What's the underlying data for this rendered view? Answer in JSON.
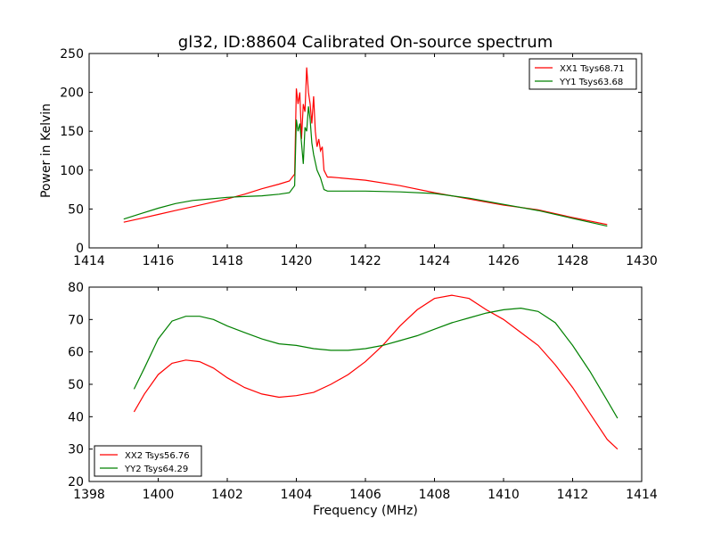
{
  "figure": {
    "title": "gl32, ID:88604 Calibrated On-source spectrum"
  },
  "chart_data": [
    {
      "type": "line",
      "ylabel": "Power in Kelvin",
      "xlabel": "",
      "xlim": [
        1414,
        1430
      ],
      "ylim": [
        0,
        250
      ],
      "xticks": [
        1414,
        1416,
        1418,
        1420,
        1422,
        1424,
        1426,
        1428,
        1430
      ],
      "yticks": [
        0,
        50,
        100,
        150,
        200,
        250
      ],
      "legend_position": "top-right",
      "grid": false,
      "series": [
        {
          "name": "XX1 Tsys68.71",
          "color": "#ff0000",
          "points": [
            [
              1415.0,
              33
            ],
            [
              1415.5,
              38
            ],
            [
              1416.0,
              43
            ],
            [
              1416.5,
              48
            ],
            [
              1417.0,
              53
            ],
            [
              1417.5,
              58
            ],
            [
              1418.0,
              63
            ],
            [
              1418.5,
              69
            ],
            [
              1419.0,
              76
            ],
            [
              1419.5,
              82
            ],
            [
              1419.8,
              86
            ],
            [
              1419.95,
              95
            ],
            [
              1420.0,
              205
            ],
            [
              1420.05,
              185
            ],
            [
              1420.1,
              200
            ],
            [
              1420.15,
              140
            ],
            [
              1420.2,
              185
            ],
            [
              1420.25,
              175
            ],
            [
              1420.3,
              232
            ],
            [
              1420.35,
              200
            ],
            [
              1420.4,
              185
            ],
            [
              1420.45,
              160
            ],
            [
              1420.5,
              195
            ],
            [
              1420.55,
              150
            ],
            [
              1420.6,
              130
            ],
            [
              1420.65,
              140
            ],
            [
              1420.7,
              125
            ],
            [
              1420.75,
              130
            ],
            [
              1420.8,
              100
            ],
            [
              1420.9,
              91
            ],
            [
              1421.0,
              91
            ],
            [
              1422.0,
              87
            ],
            [
              1423.0,
              80
            ],
            [
              1424.0,
              71
            ],
            [
              1425.0,
              63
            ],
            [
              1426.0,
              55
            ],
            [
              1427.0,
              49
            ],
            [
              1428.0,
              39
            ],
            [
              1429.0,
              30
            ]
          ]
        },
        {
          "name": "YY1 Tsys63.68",
          "color": "#008000",
          "points": [
            [
              1415.0,
              37
            ],
            [
              1415.5,
              44
            ],
            [
              1416.0,
              51
            ],
            [
              1416.5,
              57
            ],
            [
              1417.0,
              61
            ],
            [
              1417.5,
              63
            ],
            [
              1418.0,
              65
            ],
            [
              1418.5,
              66
            ],
            [
              1419.0,
              67
            ],
            [
              1419.5,
              69
            ],
            [
              1419.8,
              71
            ],
            [
              1419.95,
              80
            ],
            [
              1420.0,
              165
            ],
            [
              1420.05,
              150
            ],
            [
              1420.1,
              160
            ],
            [
              1420.15,
              135
            ],
            [
              1420.2,
              108
            ],
            [
              1420.25,
              155
            ],
            [
              1420.3,
              150
            ],
            [
              1420.35,
              182
            ],
            [
              1420.4,
              165
            ],
            [
              1420.45,
              135
            ],
            [
              1420.5,
              120
            ],
            [
              1420.55,
              110
            ],
            [
              1420.6,
              100
            ],
            [
              1420.7,
              90
            ],
            [
              1420.8,
              75
            ],
            [
              1420.9,
              73
            ],
            [
              1421.0,
              73
            ],
            [
              1422.0,
              73
            ],
            [
              1423.0,
              72
            ],
            [
              1424.0,
              70
            ],
            [
              1425.0,
              64
            ],
            [
              1426.0,
              56
            ],
            [
              1427.0,
              48
            ],
            [
              1428.0,
              38
            ],
            [
              1429.0,
              28
            ]
          ]
        }
      ]
    },
    {
      "type": "line",
      "xlabel": "Frequency (MHz)",
      "ylabel": "",
      "xlim": [
        1398,
        1414
      ],
      "ylim": [
        20,
        80
      ],
      "xticks": [
        1398,
        1400,
        1402,
        1404,
        1406,
        1408,
        1410,
        1412,
        1414
      ],
      "yticks": [
        20,
        30,
        40,
        50,
        60,
        70,
        80
      ],
      "legend_position": "bottom-left",
      "grid": false,
      "series": [
        {
          "name": "XX2 Tsys56.76",
          "color": "#ff0000",
          "points": [
            [
              1399.3,
              41.5
            ],
            [
              1399.6,
              47
            ],
            [
              1400.0,
              53
            ],
            [
              1400.4,
              56.5
            ],
            [
              1400.8,
              57.5
            ],
            [
              1401.2,
              57
            ],
            [
              1401.6,
              55
            ],
            [
              1402.0,
              52
            ],
            [
              1402.5,
              49
            ],
            [
              1403.0,
              47
            ],
            [
              1403.5,
              46
            ],
            [
              1404.0,
              46.5
            ],
            [
              1404.5,
              47.5
            ],
            [
              1405.0,
              50
            ],
            [
              1405.5,
              53
            ],
            [
              1406.0,
              57
            ],
            [
              1406.5,
              62
            ],
            [
              1407.0,
              68
            ],
            [
              1407.5,
              73
            ],
            [
              1408.0,
              76.5
            ],
            [
              1408.5,
              77.5
            ],
            [
              1409.0,
              76.5
            ],
            [
              1409.5,
              73
            ],
            [
              1410.0,
              70
            ],
            [
              1410.5,
              66
            ],
            [
              1411.0,
              62
            ],
            [
              1411.5,
              56
            ],
            [
              1412.0,
              49
            ],
            [
              1412.5,
              41
            ],
            [
              1413.0,
              33
            ],
            [
              1413.3,
              30
            ]
          ]
        },
        {
          "name": "YY2 Tsys64.29",
          "color": "#008000",
          "points": [
            [
              1399.3,
              48.5
            ],
            [
              1399.6,
              55
            ],
            [
              1400.0,
              64
            ],
            [
              1400.4,
              69.5
            ],
            [
              1400.8,
              71
            ],
            [
              1401.2,
              71
            ],
            [
              1401.6,
              70
            ],
            [
              1402.0,
              68
            ],
            [
              1402.5,
              66
            ],
            [
              1403.0,
              64
            ],
            [
              1403.5,
              62.5
            ],
            [
              1404.0,
              62
            ],
            [
              1404.5,
              61
            ],
            [
              1405.0,
              60.5
            ],
            [
              1405.5,
              60.5
            ],
            [
              1406.0,
              61
            ],
            [
              1406.5,
              62
            ],
            [
              1407.0,
              63.5
            ],
            [
              1407.5,
              65
            ],
            [
              1408.0,
              67
            ],
            [
              1408.5,
              69
            ],
            [
              1409.0,
              70.5
            ],
            [
              1409.5,
              72
            ],
            [
              1410.0,
              73
            ],
            [
              1410.5,
              73.5
            ],
            [
              1411.0,
              72.5
            ],
            [
              1411.5,
              69
            ],
            [
              1412.0,
              62
            ],
            [
              1412.5,
              54
            ],
            [
              1413.0,
              45
            ],
            [
              1413.3,
              39.5
            ]
          ]
        }
      ]
    }
  ]
}
